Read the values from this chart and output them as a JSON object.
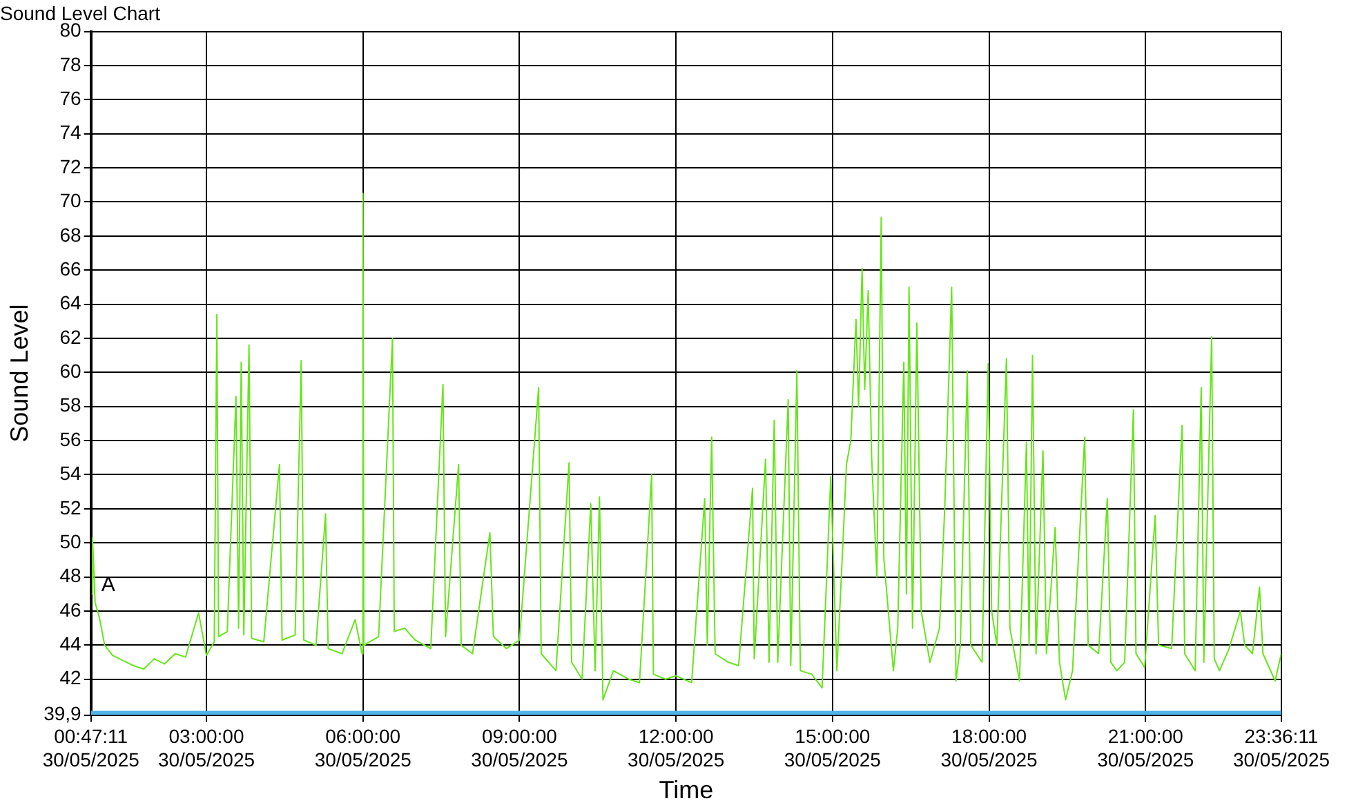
{
  "chart_data": {
    "type": "line",
    "title": "Sound Level Chart",
    "xlabel": "Time",
    "ylabel": "Sound Level",
    "xlim": [
      "2025-05-30T00:47:11",
      "2025-05-30T23:36:11"
    ],
    "xticks": [
      {
        "value": "2025-05-30T00:47:11",
        "label": "00:47:11 30/05/2025"
      },
      {
        "value": "2025-05-30T03:00",
        "label": "03:00:00 30/05/2025"
      },
      {
        "value": "2025-05-30T06:00",
        "label": "06:00:00 30/05/2025"
      },
      {
        "value": "2025-05-30T09:00",
        "label": "09:00:00 30/05/2025"
      },
      {
        "value": "2025-05-30T12:00",
        "label": "12:00:00 30/05/2025"
      },
      {
        "value": "2025-05-30T15:00",
        "label": "15:00:00 30/05/2025"
      },
      {
        "value": "2025-05-30T18:00",
        "label": "18:00:00 30/05/2025"
      },
      {
        "value": "2025-05-30T21:00",
        "label": "21:00:00 30/05/2025"
      },
      {
        "value": "2025-05-30T23:36:11",
        "label": "23:36:11 30/05/2025"
      }
    ],
    "ylim": [
      39.9,
      80
    ],
    "yticks": [
      {
        "value": 39.9,
        "label": "39,9"
      },
      42,
      44,
      46,
      48,
      50,
      52,
      54,
      56,
      58,
      60,
      62,
      64,
      66,
      68,
      70,
      72,
      74,
      76,
      78,
      80
    ],
    "grid": true,
    "legend": false,
    "marker": "none",
    "line_style": "solid",
    "bands": [
      {
        "axis": "y",
        "from": 39.9,
        "to": 40.15,
        "color": "#4fb3e8"
      }
    ],
    "annotations": [
      {
        "text": "A",
        "x": "2025-05-30T00:48",
        "y": 47.5
      }
    ],
    "series": [
      {
        "color": "#66e61a",
        "x": [
          "2025-05-30T00:48",
          "2025-05-30T00:49",
          "2025-05-30T00:52",
          "2025-05-30T00:57",
          "2025-05-30T01:03",
          "2025-05-30T01:12",
          "2025-05-30T01:24",
          "2025-05-30T01:36",
          "2025-05-30T01:48",
          "2025-05-30T02:00",
          "2025-05-30T02:12",
          "2025-05-30T02:24",
          "2025-05-30T02:36",
          "2025-05-30T02:51",
          "2025-05-30T03:00",
          "2025-05-30T03:09",
          "2025-05-30T03:12",
          "2025-05-30T03:14",
          "2025-05-30T03:24",
          "2025-05-30T03:34",
          "2025-05-30T03:37",
          "2025-05-30T03:40",
          "2025-05-30T03:43",
          "2025-05-30T03:49",
          "2025-05-30T03:52",
          "2025-05-30T04:06",
          "2025-05-30T04:24",
          "2025-05-30T04:27",
          "2025-05-30T04:42",
          "2025-05-30T04:49",
          "2025-05-30T04:52",
          "2025-05-30T05:06",
          "2025-05-30T05:17",
          "2025-05-30T05:20",
          "2025-05-30T05:36",
          "2025-05-30T05:51",
          "2025-05-30T05:59",
          "2025-05-30T06:00",
          "2025-05-30T06:01",
          "2025-05-30T06:18",
          "2025-05-30T06:34",
          "2025-05-30T06:36",
          "2025-05-30T06:48",
          "2025-05-30T07:00",
          "2025-05-30T07:18",
          "2025-05-30T07:32",
          "2025-05-30T07:35",
          "2025-05-30T07:50",
          "2025-05-30T07:53",
          "2025-05-30T08:06",
          "2025-05-30T08:26",
          "2025-05-30T08:30",
          "2025-05-30T08:45",
          "2025-05-30T09:00",
          "2025-05-30T09:22",
          "2025-05-30T09:25",
          "2025-05-30T09:42",
          "2025-05-30T09:57",
          "2025-05-30T10:00",
          "2025-05-30T10:12",
          "2025-05-30T10:22",
          "2025-05-30T10:27",
          "2025-05-30T10:32",
          "2025-05-30T10:36",
          "2025-05-30T10:48",
          "2025-05-30T11:06",
          "2025-05-30T11:18",
          "2025-05-30T11:32",
          "2025-05-30T11:34",
          "2025-05-30T11:48",
          "2025-05-30T12:00",
          "2025-05-30T12:18",
          "2025-05-30T12:33",
          "2025-05-30T12:36",
          "2025-05-30T12:41",
          "2025-05-30T12:45",
          "2025-05-30T13:00",
          "2025-05-30T13:12",
          "2025-05-30T13:28",
          "2025-05-30T13:30",
          "2025-05-30T13:43",
          "2025-05-30T13:47",
          "2025-05-30T13:53",
          "2025-05-30T13:57",
          "2025-05-30T14:09",
          "2025-05-30T14:12",
          "2025-05-30T14:19",
          "2025-05-30T14:23",
          "2025-05-30T14:36",
          "2025-05-30T14:48",
          "2025-05-30T14:58",
          "2025-05-30T15:05",
          "2025-05-30T15:12",
          "2025-05-30T15:16",
          "2025-05-30T15:21",
          "2025-05-30T15:27",
          "2025-05-30T15:30",
          "2025-05-30T15:34",
          "2025-05-30T15:37",
          "2025-05-30T15:41",
          "2025-05-30T15:45",
          "2025-05-30T15:51",
          "2025-05-30T15:56",
          "2025-05-30T15:59",
          "2025-05-30T16:10",
          "2025-05-30T16:15",
          "2025-05-30T16:22",
          "2025-05-30T16:25",
          "2025-05-30T16:28",
          "2025-05-30T16:32",
          "2025-05-30T16:37",
          "2025-05-30T16:42",
          "2025-05-30T16:52",
          "2025-05-30T17:03",
          "2025-05-30T17:09",
          "2025-05-30T17:17",
          "2025-05-30T17:22",
          "2025-05-30T17:27",
          "2025-05-30T17:35",
          "2025-05-30T17:39",
          "2025-05-30T17:52",
          "2025-05-30T17:59",
          "2025-05-30T18:03",
          "2025-05-30T18:09",
          "2025-05-30T18:20",
          "2025-05-30T18:24",
          "2025-05-30T18:35",
          "2025-05-30T18:43",
          "2025-05-30T18:46",
          "2025-05-30T18:50",
          "2025-05-30T18:54",
          "2025-05-30T19:02",
          "2025-05-30T19:06",
          "2025-05-30T19:16",
          "2025-05-30T19:21",
          "2025-05-30T19:28",
          "2025-05-30T19:36",
          "2025-05-30T19:50",
          "2025-05-30T19:54",
          "2025-05-30T20:06",
          "2025-05-30T20:16",
          "2025-05-30T20:20",
          "2025-05-30T20:27",
          "2025-05-30T20:36",
          "2025-05-30T20:46",
          "2025-05-30T20:49",
          "2025-05-30T20:59",
          "2025-05-30T21:11",
          "2025-05-30T21:15",
          "2025-05-30T21:30",
          "2025-05-30T21:42",
          "2025-05-30T21:45",
          "2025-05-30T21:57",
          "2025-05-30T22:04",
          "2025-05-30T22:07",
          "2025-05-30T22:16",
          "2025-05-30T22:19",
          "2025-05-30T22:25",
          "2025-05-30T22:36",
          "2025-05-30T22:49",
          "2025-05-30T22:54",
          "2025-05-30T23:03",
          "2025-05-30T23:11",
          "2025-05-30T23:15",
          "2025-05-30T23:29",
          "2025-05-30T23:36"
        ],
        "values": [
          47,
          50.3,
          46.5,
          45.6,
          44,
          43.4,
          43.1,
          42.8,
          42.6,
          43.2,
          42.9,
          43.5,
          43.3,
          45.9,
          43.4,
          44.2,
          63.4,
          44.5,
          44.8,
          58.6,
          45,
          60.6,
          44.6,
          61.6,
          44.4,
          44.2,
          54.6,
          44.3,
          44.6,
          60.7,
          44.3,
          44,
          51.7,
          43.8,
          43.5,
          45.5,
          43.5,
          70.5,
          44,
          44.5,
          62,
          44.8,
          45,
          44.3,
          43.8,
          59.3,
          44.5,
          54.6,
          44,
          43.5,
          50.6,
          44.5,
          43.8,
          44.3,
          59.1,
          43.5,
          42.5,
          54.7,
          43,
          42,
          52.3,
          42.5,
          52.7,
          40.8,
          42.5,
          42,
          41.8,
          54,
          42.3,
          42,
          42.2,
          41.8,
          52.6,
          44,
          56.2,
          43.5,
          43,
          42.8,
          53.2,
          43.2,
          54.9,
          43,
          57.2,
          43,
          58.4,
          42.8,
          60.1,
          42.5,
          42.3,
          41.5,
          53.9,
          42.5,
          50,
          54.6,
          56,
          63.1,
          58,
          66.1,
          59,
          64.8,
          55,
          48,
          69.1,
          49.1,
          42.5,
          45,
          60.6,
          47,
          65,
          45,
          62.9,
          46,
          43,
          45,
          52,
          65,
          41.9,
          44,
          60.1,
          44,
          43,
          60.5,
          46,
          44,
          60.8,
          45,
          41.9,
          55.9,
          44,
          61,
          43.5,
          55.4,
          43.5,
          50.9,
          43,
          40.8,
          42.5,
          56.2,
          44,
          43.5,
          52.6,
          43,
          42.5,
          43,
          57.8,
          43.5,
          42.7,
          51.6,
          44,
          43.8,
          56.9,
          43.5,
          42.5,
          59.1,
          43,
          62.1,
          43.2,
          42.5,
          43.8,
          46,
          44,
          43.5,
          47.4,
          43.5,
          41.9,
          43.5
        ]
      }
    ]
  }
}
